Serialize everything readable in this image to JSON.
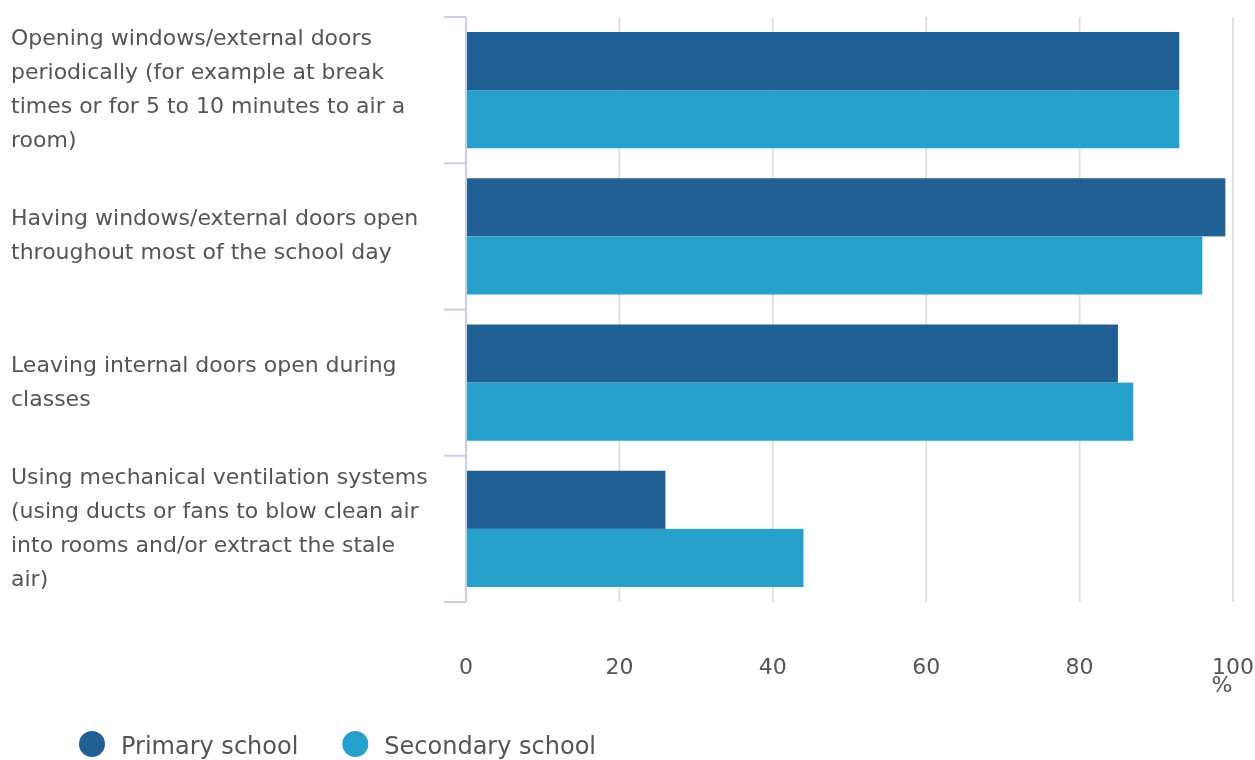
{
  "chart_data": {
    "type": "bar",
    "orientation": "horizontal",
    "categories": [
      "Opening windows/external doors periodically (for example at break times or for 5 to 10 minutes to air a room)",
      "Having windows/external doors open throughout most of the school day",
      "Leaving internal doors open during classes",
      "Using mechanical ventilation systems (using ducts or fans to blow clean air into rooms and/or extract the stale air)"
    ],
    "series": [
      {
        "name": "Primary school",
        "color": "#206095",
        "values": [
          93,
          99,
          85,
          26
        ]
      },
      {
        "name": "Secondary school",
        "color": "#27a0cc",
        "values": [
          93,
          96,
          87,
          44
        ]
      }
    ],
    "xlim": [
      0,
      100
    ],
    "xticks": [
      0,
      20,
      40,
      60,
      80,
      100
    ],
    "xlabel": "%",
    "grid": "x",
    "legend": "bottom left"
  }
}
